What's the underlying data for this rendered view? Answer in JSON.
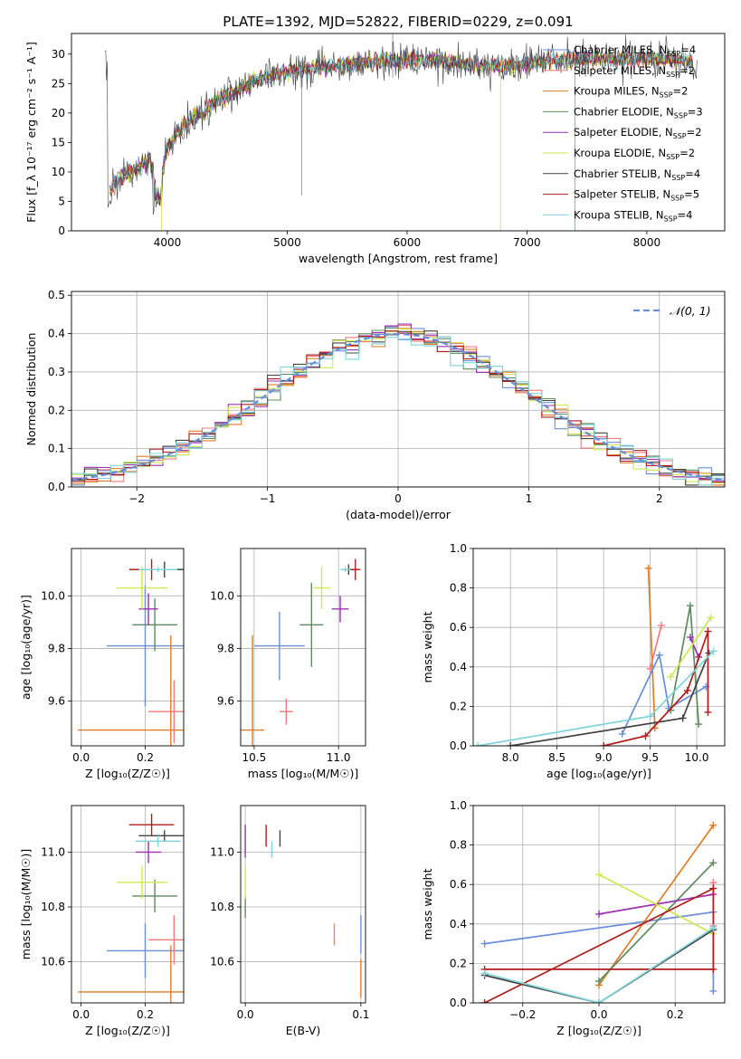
{
  "title": "PLATE=1392, MJD=52822, FIBERID=0229, z=0.091",
  "colors": {
    "Chabrier MILES": "#6a8fd8",
    "Salpeter MILES": "#f07b7b",
    "Kroupa MILES": "#e07b25",
    "Chabrier ELODIE": "#5f8c5f",
    "Salpeter ELODIE": "#9b30b0",
    "Kroupa ELODIE": "#cfe84f",
    "Chabrier STELIB": "#444444",
    "Salpeter STELIB": "#b01c1c",
    "Kroupa STELIB": "#7fd4dc",
    "normal": "#6a8fd8"
  },
  "chart_data": [
    {
      "id": "spectrum",
      "type": "line",
      "xlabel": "wavelength [Angstrom, rest frame]",
      "ylabel": "Flux [f_λ 10⁻¹⁷ erg cm⁻² s⁻¹ A⁻¹]",
      "xlim": [
        3200,
        8650
      ],
      "ylim": [
        0,
        33.5
      ],
      "xticks": [
        4000,
        5000,
        6000,
        7000,
        8000
      ],
      "yticks": [
        0,
        5,
        10,
        15,
        20,
        25,
        30
      ],
      "legend_position": "top-right",
      "legend": [
        {
          "label": "Chabrier MILES",
          "n": "4"
        },
        {
          "label": "Salpeter MILES",
          "n": "2"
        },
        {
          "label": "Kroupa MILES",
          "n": "2"
        },
        {
          "label": "Chabrier ELODIE",
          "n": "3"
        },
        {
          "label": "Salpeter ELODIE",
          "n": "2"
        },
        {
          "label": "Kroupa ELODIE",
          "n": "2"
        },
        {
          "label": "Chabrier STELIB",
          "n": "4"
        },
        {
          "label": "Salpeter STELIB",
          "n": "5"
        },
        {
          "label": "Kroupa STELIB",
          "n": "4"
        }
      ],
      "envelope": {
        "x": [
          3500,
          3600,
          3700,
          3850,
          3950,
          4000,
          4100,
          4200,
          4300,
          4400,
          4500,
          4600,
          4800,
          5000,
          5200,
          5400,
          5600,
          5800,
          6000,
          6200,
          6400,
          6600,
          6800,
          7000,
          7200,
          7400,
          7600,
          7800,
          8000,
          8200,
          8400
        ],
        "y": [
          6,
          9,
          10,
          12,
          9,
          14,
          17,
          19,
          20,
          22,
          23,
          24,
          26,
          27,
          27.5,
          28,
          28.5,
          29,
          29,
          29,
          28.5,
          28,
          28,
          28.5,
          29,
          29,
          29.5,
          29,
          29.5,
          29,
          28.5
        ]
      }
    },
    {
      "id": "residuals",
      "type": "step",
      "xlabel": "(data-model)/error",
      "ylabel": "Normed distribution",
      "xlim": [
        -2.5,
        2.5
      ],
      "ylim": [
        0,
        0.51
      ],
      "xticks": [
        -2,
        -1,
        0,
        1,
        2
      ],
      "yticks": [
        0.0,
        0.1,
        0.2,
        0.3,
        0.4,
        0.5
      ],
      "legend": [
        {
          "label": "𝒩(0, 1)"
        }
      ],
      "legend_position": "top-right",
      "bin_width": 0.1
    },
    {
      "id": "age-z",
      "type": "errorbar",
      "xlabel": "Z [log₁₀(Z/Z☉)]",
      "ylabel": "age  [log₁₀(age/yr)]",
      "xlim": [
        -0.03,
        0.32
      ],
      "ylim": [
        9.43,
        10.18
      ],
      "xticks": [
        0.0,
        0.2
      ],
      "yticks": [
        9.6,
        9.8,
        10.0
      ],
      "points": [
        {
          "model": "Chabrier MILES",
          "x": 0.2,
          "xerr": 0.12,
          "y": 9.81,
          "yerr": 0.23
        },
        {
          "model": "Salpeter MILES",
          "x": 0.29,
          "xerr": 0.08,
          "y": 9.56,
          "yerr": 0.12
        },
        {
          "model": "Kroupa MILES",
          "x": 0.28,
          "xerr": 0.29,
          "y": 9.49,
          "yerr": 0.36
        },
        {
          "model": "Chabrier ELODIE",
          "x": 0.23,
          "xerr": 0.07,
          "y": 9.89,
          "yerr": 0.1
        },
        {
          "model": "Salpeter ELODIE",
          "x": 0.21,
          "xerr": 0.03,
          "y": 9.95,
          "yerr": 0.06
        },
        {
          "model": "Kroupa ELODIE",
          "x": 0.19,
          "xerr": 0.08,
          "y": 10.03,
          "yerr": 0.08
        },
        {
          "model": "Chabrier STELIB",
          "x": 0.26,
          "xerr": 0.07,
          "y": 10.1,
          "yerr": 0.03
        },
        {
          "model": "Salpeter STELIB",
          "x": 0.22,
          "xerr": 0.07,
          "y": 10.1,
          "yerr": 0.04
        },
        {
          "model": "Kroupa STELIB",
          "x": 0.24,
          "xerr": 0.06,
          "y": 10.1,
          "yerr": 0.01
        }
      ]
    },
    {
      "id": "age-mass",
      "type": "errorbar",
      "xlabel": "mass [log₁₀(M/M☉)]",
      "ylabel": "",
      "xlim": [
        10.42,
        11.16
      ],
      "ylim": [
        9.43,
        10.18
      ],
      "xticks": [
        10.5,
        11.0
      ],
      "yticks": [
        9.6,
        9.8,
        10.0
      ],
      "points": [
        {
          "model": "Chabrier MILES",
          "x": 10.65,
          "xerr": 0.15,
          "y": 9.81,
          "yerr": 0.13
        },
        {
          "model": "Salpeter MILES",
          "x": 10.69,
          "xerr": 0.04,
          "y": 9.56,
          "yerr": 0.05
        },
        {
          "model": "Kroupa MILES",
          "x": 10.49,
          "xerr": 0.07,
          "y": 9.49,
          "yerr": 0.36
        },
        {
          "model": "Chabrier ELODIE",
          "x": 10.84,
          "xerr": 0.07,
          "y": 9.89,
          "yerr": 0.16
        },
        {
          "model": "Salpeter ELODIE",
          "x": 11.01,
          "xerr": 0.05,
          "y": 9.95,
          "yerr": 0.05
        },
        {
          "model": "Kroupa ELODIE",
          "x": 10.9,
          "xerr": 0.05,
          "y": 10.03,
          "yerr": 0.08
        },
        {
          "model": "Chabrier STELIB",
          "x": 11.06,
          "xerr": 0.03,
          "y": 10.1,
          "yerr": 0.02
        },
        {
          "model": "Salpeter STELIB",
          "x": 11.1,
          "xerr": 0.03,
          "y": 10.1,
          "yerr": 0.04
        },
        {
          "model": "Kroupa STELIB",
          "x": 11.04,
          "xerr": 0.03,
          "y": 10.1,
          "yerr": 0.01
        }
      ]
    },
    {
      "id": "weight-age",
      "type": "line",
      "xlabel": "age  [log₁₀(age/yr)]",
      "ylabel": "mass weight",
      "xlim": [
        7.6,
        10.3
      ],
      "ylim": [
        0,
        1.0
      ],
      "xticks": [
        8.0,
        8.5,
        9.0,
        9.5,
        10.0
      ],
      "yticks": [
        0.0,
        0.2,
        0.4,
        0.6,
        0.8,
        1.0
      ],
      "series": [
        {
          "model": "Kroupa MILES",
          "x": [
            9.48,
            9.55
          ],
          "y": [
            0.9,
            0.09
          ]
        },
        {
          "model": "Salpeter MILES",
          "x": [
            9.5,
            9.62
          ],
          "y": [
            0.39,
            0.61
          ]
        },
        {
          "model": "Chabrier MILES",
          "x": [
            9.2,
            9.6,
            9.7,
            10.1
          ],
          "y": [
            0.06,
            0.46,
            0.19,
            0.3
          ]
        },
        {
          "model": "Chabrier ELODIE",
          "x": [
            9.72,
            9.93,
            10.02
          ],
          "y": [
            0.18,
            0.71,
            0.11
          ]
        },
        {
          "model": "Salpeter ELODIE",
          "x": [
            9.93,
            10.02
          ],
          "y": [
            0.55,
            0.45
          ]
        },
        {
          "model": "Kroupa ELODIE",
          "x": [
            9.72,
            10.15
          ],
          "y": [
            0.35,
            0.65
          ]
        },
        {
          "model": "Chabrier STELIB",
          "x": [
            8.0,
            9.85,
            10.13
          ],
          "y": [
            0.0,
            0.14,
            0.47
          ]
        },
        {
          "model": "Salpeter STELIB",
          "x": [
            9.0,
            9.45,
            9.9,
            10.12,
            10.12
          ],
          "y": [
            0.0,
            0.05,
            0.28,
            0.58,
            0.17
          ]
        },
        {
          "model": "Kroupa STELIB",
          "x": [
            7.65,
            9.5,
            10.18
          ],
          "y": [
            0.0,
            0.15,
            0.48
          ]
        }
      ]
    },
    {
      "id": "mass-z",
      "type": "errorbar",
      "xlabel": "Z [log₁₀(Z/Z☉)]",
      "ylabel": "mass [log₁₀(M/M☉)]",
      "xlim": [
        -0.03,
        0.32
      ],
      "ylim": [
        10.45,
        11.17
      ],
      "xticks": [
        0.0,
        0.2
      ],
      "yticks": [
        10.6,
        10.8,
        11.0
      ],
      "points": [
        {
          "model": "Chabrier MILES",
          "x": 0.2,
          "xerr": 0.12,
          "y": 10.64,
          "yerr": 0.1
        },
        {
          "model": "Salpeter MILES",
          "x": 0.29,
          "xerr": 0.08,
          "y": 10.68,
          "yerr": 0.09
        },
        {
          "model": "Kroupa MILES",
          "x": 0.28,
          "xerr": 0.29,
          "y": 10.49,
          "yerr": 0.17
        },
        {
          "model": "Chabrier ELODIE",
          "x": 0.23,
          "xerr": 0.07,
          "y": 10.84,
          "yerr": 0.06
        },
        {
          "model": "Salpeter ELODIE",
          "x": 0.21,
          "xerr": 0.04,
          "y": 11.0,
          "yerr": 0.04
        },
        {
          "model": "Kroupa ELODIE",
          "x": 0.19,
          "xerr": 0.08,
          "y": 10.89,
          "yerr": 0.06
        },
        {
          "model": "Chabrier STELIB",
          "x": 0.26,
          "xerr": 0.08,
          "y": 11.06,
          "yerr": 0.02
        },
        {
          "model": "Salpeter STELIB",
          "x": 0.22,
          "xerr": 0.07,
          "y": 11.1,
          "yerr": 0.04
        },
        {
          "model": "Kroupa STELIB",
          "x": 0.24,
          "xerr": 0.07,
          "y": 11.04,
          "yerr": 0.02
        }
      ]
    },
    {
      "id": "mass-ebv",
      "type": "errorbar",
      "xlabel": "E(B-V)",
      "ylabel": "",
      "xlim": [
        -0.004,
        0.104
      ],
      "ylim": [
        10.45,
        11.17
      ],
      "xticks": [
        0.0,
        0.1
      ],
      "yticks": [
        10.6,
        10.8,
        11.0
      ],
      "points": [
        {
          "model": "Chabrier MILES",
          "x": 0.1,
          "xerr": 0.0,
          "y": 10.7,
          "yerr": 0.07
        },
        {
          "model": "Salpeter MILES",
          "x": 0.077,
          "xerr": 0.0,
          "y": 10.7,
          "yerr": 0.04
        },
        {
          "model": "Kroupa MILES",
          "x": 0.1,
          "xerr": 0.0,
          "y": 10.54,
          "yerr": 0.07
        },
        {
          "model": "Chabrier ELODIE",
          "x": 0.0,
          "xerr": 0.0,
          "y": 10.8,
          "yerr": 0.04
        },
        {
          "model": "Salpeter ELODIE",
          "x": 0.0,
          "xerr": 0.0,
          "y": 11.04,
          "yerr": 0.06
        },
        {
          "model": "Kroupa ELODIE",
          "x": 0.0,
          "xerr": 0.0,
          "y": 10.89,
          "yerr": 0.06
        },
        {
          "model": "Chabrier STELIB",
          "x": 0.03,
          "xerr": 0.0,
          "y": 11.05,
          "yerr": 0.03
        },
        {
          "model": "Salpeter STELIB",
          "x": 0.018,
          "xerr": 0.0,
          "y": 11.06,
          "yerr": 0.04
        },
        {
          "model": "Kroupa STELIB",
          "x": 0.023,
          "xerr": 0.0,
          "y": 11.01,
          "yerr": 0.03
        }
      ]
    },
    {
      "id": "weight-z",
      "type": "line",
      "xlabel": "Z [log₁₀(Z/Z☉)]",
      "ylabel": "mass weight",
      "xlim": [
        -0.33,
        0.33
      ],
      "ylim": [
        0,
        1.0
      ],
      "xticks": [
        -0.2,
        0.0,
        0.2
      ],
      "yticks": [
        0.0,
        0.2,
        0.4,
        0.6,
        0.8,
        1.0
      ],
      "series": [
        {
          "model": "Chabrier MILES",
          "x": [
            -0.3,
            0.3,
            0.3
          ],
          "y": [
            0.3,
            0.46,
            0.06
          ]
        },
        {
          "model": "Salpeter MILES",
          "x": [
            0.3,
            0.3
          ],
          "y": [
            0.61,
            0.39
          ]
        },
        {
          "model": "Kroupa MILES",
          "x": [
            0.0,
            0.3
          ],
          "y": [
            0.09,
            0.9
          ]
        },
        {
          "model": "Chabrier ELODIE",
          "x": [
            0.0,
            0.3
          ],
          "y": [
            0.11,
            0.71
          ]
        },
        {
          "model": "Salpeter ELODIE",
          "x": [
            0.0,
            0.3
          ],
          "y": [
            0.45,
            0.55
          ]
        },
        {
          "model": "Kroupa ELODIE",
          "x": [
            0.0,
            0.3
          ],
          "y": [
            0.65,
            0.35
          ]
        },
        {
          "model": "Chabrier STELIB",
          "x": [
            -0.3,
            0.0,
            0.3
          ],
          "y": [
            0.14,
            0.0,
            0.37
          ]
        },
        {
          "model": "Salpeter STELIB",
          "x": [
            -0.3,
            0.3,
            0.3,
            -0.3
          ],
          "y": [
            0.0,
            0.58,
            0.17,
            0.17
          ]
        },
        {
          "model": "Kroupa STELIB",
          "x": [
            -0.3,
            0.0,
            0.3
          ],
          "y": [
            0.15,
            0.0,
            0.38
          ]
        }
      ]
    }
  ]
}
